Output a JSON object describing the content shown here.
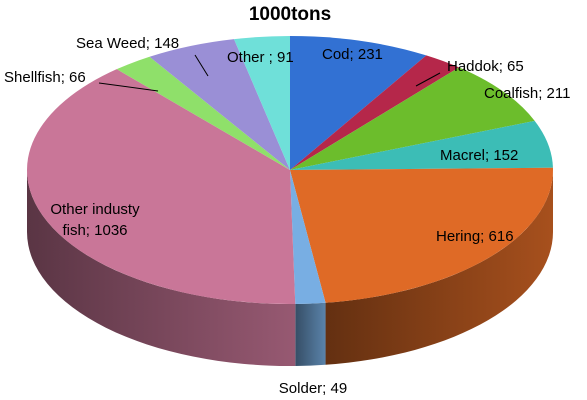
{
  "chart_data": {
    "type": "pie",
    "title": "1000tons",
    "slices": [
      {
        "label": "Cod",
        "value": 231,
        "text": "Cod; 231",
        "color": "#3271d3"
      },
      {
        "label": "Haddok",
        "value": 65,
        "text": "Haddok; 65",
        "color": "#b5274a"
      },
      {
        "label": "Coalfish",
        "value": 211,
        "text": "Coalfish; 211",
        "color": "#6cbd2c"
      },
      {
        "label": "Macrel",
        "value": 152,
        "text": "Macrel; 152",
        "color": "#3cbdb6"
      },
      {
        "label": "Hering",
        "value": 616,
        "text": "Hering; 616",
        "color": "#df6a26"
      },
      {
        "label": "Solder",
        "value": 49,
        "text": "Solder; 49",
        "color": "#78aee3"
      },
      {
        "label": "Other industy fish",
        "value": 1036,
        "text_lines": [
          "Other industy",
          "fish; 1036"
        ],
        "color": "#c97698"
      },
      {
        "label": "Shellfish",
        "value": 66,
        "text": "Shellfish; 66",
        "color": "#8fe06a"
      },
      {
        "label": "Sea Weed",
        "value": 148,
        "text": "Sea Weed; 148",
        "color": "#9a8fd6"
      },
      {
        "label": "Other",
        "value": 91,
        "text": "Other ; 91",
        "color": "#6fe0d9"
      }
    ]
  }
}
